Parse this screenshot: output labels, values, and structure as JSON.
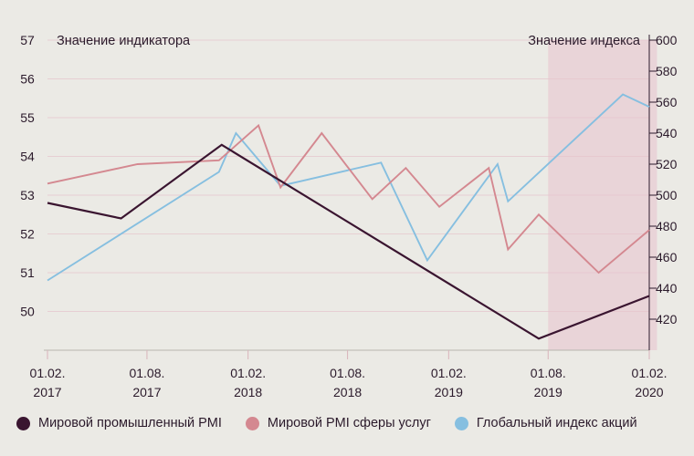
{
  "chart_data": {
    "type": "line",
    "left_axis_title": "Значение индикатора",
    "right_axis_title": "Значение индекса",
    "y_left": {
      "ticks": [
        50,
        51,
        52,
        53,
        54,
        55,
        56,
        57
      ],
      "range": [
        49.0,
        57.0
      ]
    },
    "y_right": {
      "ticks": [
        420,
        440,
        460,
        480,
        500,
        520,
        540,
        560,
        580,
        600
      ],
      "range": [
        400,
        600
      ]
    },
    "x_ticks": [
      {
        "date": "2017-02-01",
        "line1": "01.02.",
        "line2": "2017"
      },
      {
        "date": "2017-08-01",
        "line1": "01.08.",
        "line2": "2017"
      },
      {
        "date": "2018-02-01",
        "line1": "01.02.",
        "line2": "2018"
      },
      {
        "date": "2018-08-01",
        "line1": "01.08.",
        "line2": "2018"
      },
      {
        "date": "2019-02-01",
        "line1": "01.02.",
        "line2": "2019"
      },
      {
        "date": "2019-08-01",
        "line1": "01.08.",
        "line2": "2019"
      },
      {
        "date": "2020-02-01",
        "line1": "01.02.",
        "line2": "2020"
      }
    ],
    "shaded_region": {
      "from": "2019-08-01",
      "to": "2020-02-15",
      "color": "#e9d4d8"
    },
    "gridlines": true,
    "legend_position": "bottom",
    "series": [
      {
        "name": "Мировой промышленный PMI",
        "axis": "left",
        "color": "#3a1530",
        "points": [
          [
            "2017-02-01",
            52.8
          ],
          [
            "2017-06-15",
            52.4
          ],
          [
            "2017-12-15",
            54.3
          ],
          [
            "2019-07-15",
            49.3
          ],
          [
            "2020-02-01",
            50.4
          ]
        ]
      },
      {
        "name": "Мировой PMI сферы услуг",
        "axis": "left",
        "color": "#d48890",
        "points": [
          [
            "2017-02-01",
            53.3
          ],
          [
            "2017-07-15",
            53.8
          ],
          [
            "2017-12-10",
            53.9
          ],
          [
            "2018-02-20",
            54.8
          ],
          [
            "2018-04-01",
            53.2
          ],
          [
            "2018-06-15",
            54.6
          ],
          [
            "2018-09-15",
            52.9
          ],
          [
            "2018-11-15",
            53.7
          ],
          [
            "2019-01-15",
            52.7
          ],
          [
            "2019-04-15",
            53.7
          ],
          [
            "2019-05-20",
            51.6
          ],
          [
            "2019-07-15",
            52.5
          ],
          [
            "2019-11-01",
            51.0
          ],
          [
            "2020-02-01",
            52.1
          ]
        ]
      },
      {
        "name": "Глобальный индекс акций",
        "axis": "right",
        "color": "#86bfe0",
        "points": [
          [
            "2017-02-01",
            445
          ],
          [
            "2017-12-10",
            515
          ],
          [
            "2018-01-10",
            540
          ],
          [
            "2018-04-01",
            506
          ],
          [
            "2018-10-01",
            521
          ],
          [
            "2018-12-24",
            458
          ],
          [
            "2019-05-01",
            520
          ],
          [
            "2019-05-20",
            496
          ],
          [
            "2019-12-15",
            565
          ],
          [
            "2020-02-01",
            557
          ]
        ]
      }
    ]
  }
}
